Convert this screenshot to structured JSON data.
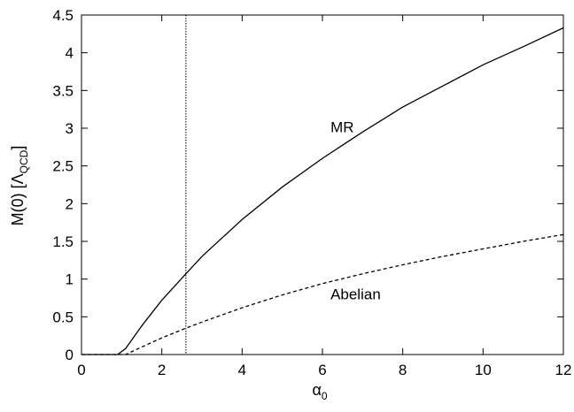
{
  "chart_data": {
    "type": "line",
    "xlabel": "α",
    "xlabel_sub": "0",
    "ylabel": "M(0) [Λ",
    "ylabel_sub": "QCD",
    "ylabel_close": "]",
    "xlim": [
      0,
      12
    ],
    "ylim": [
      0,
      4.5
    ],
    "xticks": [
      0,
      2,
      4,
      6,
      8,
      10,
      12
    ],
    "yticks": [
      0,
      0.5,
      1,
      1.5,
      2,
      2.5,
      3,
      3.5,
      4,
      4.5
    ],
    "xtick_labels": [
      "0",
      "2",
      "4",
      "6",
      "8",
      "10",
      "12"
    ],
    "ytick_labels": [
      "0",
      "0.5",
      "1",
      "1.5",
      "2",
      "2.5",
      "3",
      "3.5",
      "4",
      "4.5"
    ],
    "grid": false,
    "vline": {
      "x": 2.6,
      "style": "dotted"
    },
    "series": [
      {
        "name": "MR",
        "style": "solid",
        "x": [
          0.0,
          0.9,
          1.1,
          1.5,
          2.0,
          2.6,
          3.0,
          4.0,
          5.0,
          6.0,
          7.0,
          8.0,
          9.0,
          10.0,
          11.0,
          12.0
        ],
        "y": [
          0.0,
          0.0,
          0.08,
          0.38,
          0.72,
          1.07,
          1.3,
          1.79,
          2.22,
          2.6,
          2.95,
          3.28,
          3.56,
          3.84,
          4.08,
          4.33
        ]
      },
      {
        "name": "Abelian",
        "style": "dashed",
        "x": [
          0.0,
          1.1,
          1.5,
          2.0,
          2.6,
          3.0,
          4.0,
          5.0,
          6.0,
          7.0,
          8.0,
          9.0,
          10.0,
          11.0,
          12.0
        ],
        "y": [
          0.0,
          0.0,
          0.1,
          0.22,
          0.35,
          0.43,
          0.62,
          0.79,
          0.94,
          1.07,
          1.19,
          1.3,
          1.4,
          1.5,
          1.59
        ]
      }
    ],
    "annotations": [
      {
        "text": "MR",
        "x": 6.2,
        "y": 2.95
      },
      {
        "text": "Abelian",
        "x": 6.2,
        "y": 0.73
      }
    ]
  }
}
